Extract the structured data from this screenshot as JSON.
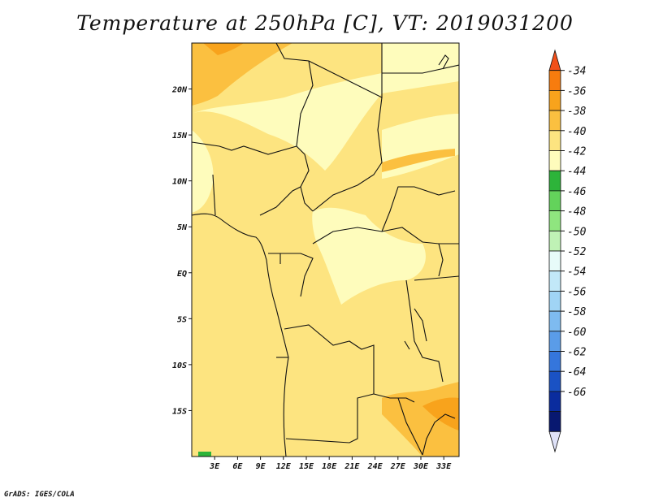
{
  "title": "Temperature at 250hPa [C], VT: 2019031200",
  "footer": "GrADS: IGES/COLA",
  "map": {
    "lon_range": [
      0,
      35
    ],
    "lat_range": [
      -20,
      25
    ],
    "lat_ticks": [
      "20N",
      "15N",
      "10N",
      "5N",
      "EQ",
      "5S",
      "10S",
      "15S"
    ],
    "lon_ticks": [
      "3E",
      "6E",
      "9E",
      "12E",
      "15E",
      "18E",
      "21E",
      "24E",
      "27E",
      "30E",
      "33E"
    ],
    "base_color": "#fde480"
  },
  "colorbar": {
    "labels": [
      "-34",
      "-36",
      "-38",
      "-40",
      "-42",
      "-44",
      "-46",
      "-48",
      "-50",
      "-52",
      "-54",
      "-56",
      "-58",
      "-60",
      "-62",
      "-64",
      "-66"
    ],
    "colors": [
      "#f2501a",
      "#f77c0e",
      "#f8a31c",
      "#fbc040",
      "#fde480",
      "#fefcbc",
      "#2db43a",
      "#63d35b",
      "#8fe57f",
      "#bff2b5",
      "#e7fbf9",
      "#c2e8f8",
      "#a0d4f5",
      "#7ebbf0",
      "#5a9ce8",
      "#3576dc",
      "#1a52c4",
      "#0a2c9e",
      "#081870",
      "#dfe2f8"
    ]
  }
}
